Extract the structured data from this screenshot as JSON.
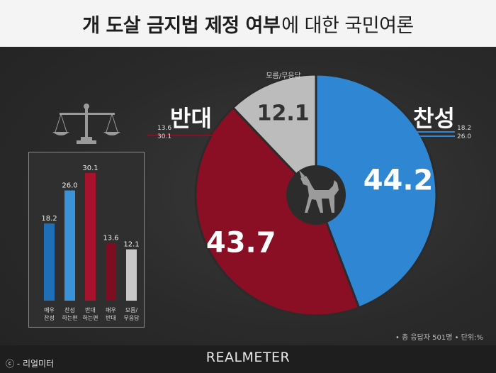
{
  "header": {
    "title_bold": "개 도살 금지법 제정 여부",
    "title_normal": "에 대한 국민여론"
  },
  "chart_data": [
    {
      "type": "pie",
      "slices": [
        {
          "label": "찬성",
          "value": 44.2,
          "color": "#2f86d3"
        },
        {
          "label": "반대",
          "value": 43.7,
          "color": "#8b0f24"
        },
        {
          "label": "모름/무응답",
          "value": 12.1,
          "color": "#bcbcbc"
        }
      ],
      "side_labels": {
        "left": {
          "title": "반대",
          "values": [
            "13.6",
            "30.1"
          ]
        },
        "right": {
          "title": "찬성",
          "values": [
            "18.2",
            "26.0"
          ]
        }
      }
    },
    {
      "type": "bar",
      "categories": [
        "매우 찬성",
        "찬성 하는편",
        "반대 하는편",
        "매우 반대",
        "모름/ 무응답"
      ],
      "category_lines": [
        [
          "매우",
          "찬성"
        ],
        [
          "찬성",
          "하는편"
        ],
        [
          "반대",
          "하는편"
        ],
        [
          "매우",
          "반대"
        ],
        [
          "모름/",
          "무응답"
        ]
      ],
      "values": [
        18.2,
        26.0,
        30.1,
        13.6,
        12.1
      ],
      "value_labels": [
        "18.2",
        "26.0",
        "30.1",
        "13.6",
        "12.1"
      ],
      "colors": [
        "#1f6fb8",
        "#3a92d8",
        "#a8122c",
        "#7d0d20",
        "#c8c8c8"
      ],
      "ylim": [
        0,
        30.1
      ]
    }
  ],
  "footer": {
    "note": "• 총 응답자 501명 • 단위:%",
    "brand": "REALMETER",
    "copyright": "ⓒ - 리얼미터"
  },
  "icons": {
    "scale": "scale-icon",
    "dog": "dog-icon"
  }
}
